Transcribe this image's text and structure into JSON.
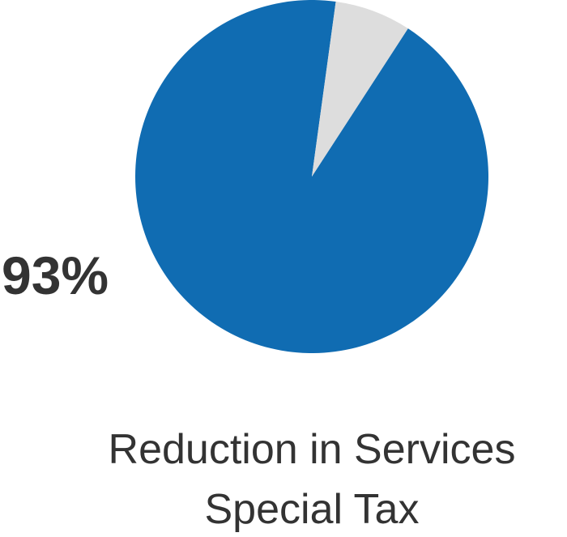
{
  "chart_data": {
    "type": "pie",
    "slices": [
      {
        "value": 93,
        "color": "#106CB2"
      },
      {
        "value": 7,
        "color": "#DDDDDD"
      }
    ],
    "value_label": "93%",
    "title_lines": [
      "Reduction in Services",
      "Special Tax"
    ]
  }
}
